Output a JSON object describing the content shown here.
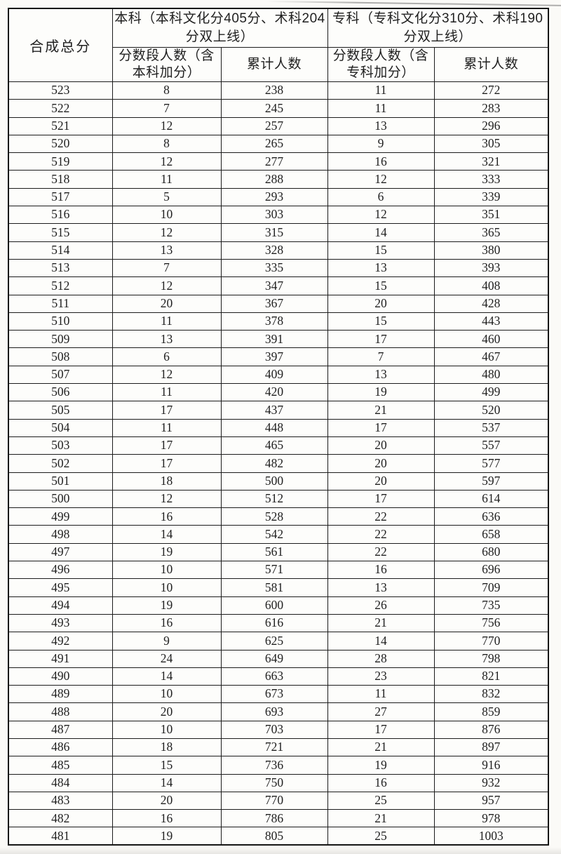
{
  "page": {
    "background": "#fbfaf7",
    "border_color": "#1c1c1c",
    "text_color": "#1f1f1f",
    "kind": "scanned score distribution table"
  },
  "table": {
    "header": {
      "col_score": "合成总分",
      "group_benke": "本科（本科文化分405分、术科204分双上线）",
      "group_zhuanke": "专科（专科文化分310分、术科190分双上线）",
      "sub_benke_segment": "分数段人数（含本科加分）",
      "sub_benke_cumulative": "累计人数",
      "sub_zhuanke_segment": "分数段人数（含专科加分）",
      "sub_zhuanke_cumulative": "累计人数"
    },
    "rows": [
      [
        523,
        8,
        238,
        11,
        272
      ],
      [
        522,
        7,
        245,
        11,
        283
      ],
      [
        521,
        12,
        257,
        13,
        296
      ],
      [
        520,
        8,
        265,
        9,
        305
      ],
      [
        519,
        12,
        277,
        16,
        321
      ],
      [
        518,
        11,
        288,
        12,
        333
      ],
      [
        517,
        5,
        293,
        6,
        339
      ],
      [
        516,
        10,
        303,
        12,
        351
      ],
      [
        515,
        12,
        315,
        14,
        365
      ],
      [
        514,
        13,
        328,
        15,
        380
      ],
      [
        513,
        7,
        335,
        13,
        393
      ],
      [
        512,
        12,
        347,
        15,
        408
      ],
      [
        511,
        20,
        367,
        20,
        428
      ],
      [
        510,
        11,
        378,
        15,
        443
      ],
      [
        509,
        13,
        391,
        17,
        460
      ],
      [
        508,
        6,
        397,
        7,
        467
      ],
      [
        507,
        12,
        409,
        13,
        480
      ],
      [
        506,
        11,
        420,
        19,
        499
      ],
      [
        505,
        17,
        437,
        21,
        520
      ],
      [
        504,
        11,
        448,
        17,
        537
      ],
      [
        503,
        17,
        465,
        20,
        557
      ],
      [
        502,
        17,
        482,
        20,
        577
      ],
      [
        501,
        18,
        500,
        20,
        597
      ],
      [
        500,
        12,
        512,
        17,
        614
      ],
      [
        499,
        16,
        528,
        22,
        636
      ],
      [
        498,
        14,
        542,
        22,
        658
      ],
      [
        497,
        19,
        561,
        22,
        680
      ],
      [
        496,
        10,
        571,
        16,
        696
      ],
      [
        495,
        10,
        581,
        13,
        709
      ],
      [
        494,
        19,
        600,
        26,
        735
      ],
      [
        493,
        16,
        616,
        21,
        756
      ],
      [
        492,
        9,
        625,
        14,
        770
      ],
      [
        491,
        24,
        649,
        28,
        798
      ],
      [
        490,
        14,
        663,
        23,
        821
      ],
      [
        489,
        10,
        673,
        11,
        832
      ],
      [
        488,
        20,
        693,
        27,
        859
      ],
      [
        487,
        10,
        703,
        17,
        876
      ],
      [
        486,
        18,
        721,
        21,
        897
      ],
      [
        485,
        15,
        736,
        19,
        916
      ],
      [
        484,
        14,
        750,
        16,
        932
      ],
      [
        483,
        20,
        770,
        25,
        957
      ],
      [
        482,
        16,
        786,
        21,
        978
      ],
      [
        481,
        19,
        805,
        25,
        1003
      ]
    ]
  }
}
